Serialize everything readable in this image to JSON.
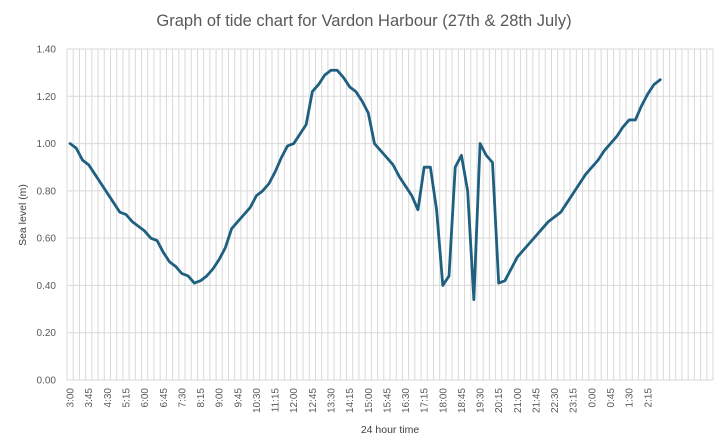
{
  "chart_data": {
    "type": "line",
    "title": "Graph of tide chart for Vardon Harbour (27th & 28th July)",
    "xlabel": "24 hour time",
    "ylabel": "Sea level (m)",
    "ylim": [
      0,
      1.4
    ],
    "y_ticks": [
      "0.00",
      "0.20",
      "0.40",
      "0.60",
      "0.80",
      "1.00",
      "1.20",
      "1.40"
    ],
    "x_start": "3:00",
    "x_step_minutes": 15,
    "x_tick_labels": [
      "3:00",
      "3:45",
      "4:30",
      "5:15",
      "6:00",
      "6:45",
      "7:30",
      "8:15",
      "9:00",
      "9:45",
      "10:30",
      "11:15",
      "12:00",
      "12:45",
      "13:30",
      "14:15",
      "15:00",
      "15:45",
      "16:30",
      "17:15",
      "18:00",
      "18:45",
      "19:30",
      "20:15",
      "21:00",
      "21:45",
      "22:30",
      "23:15",
      "0:00",
      "0:45",
      "1:30",
      "2:15"
    ],
    "grid": true,
    "legend": "none",
    "series": [
      {
        "name": "Sea level",
        "color": "#1f5f80",
        "values": [
          1.0,
          0.98,
          0.93,
          0.91,
          0.87,
          0.83,
          0.79,
          0.75,
          0.71,
          0.7,
          0.67,
          0.65,
          0.63,
          0.6,
          0.59,
          0.54,
          0.5,
          0.48,
          0.45,
          0.44,
          0.41,
          0.42,
          0.44,
          0.47,
          0.51,
          0.56,
          0.64,
          0.67,
          0.7,
          0.73,
          0.78,
          0.8,
          0.83,
          0.88,
          0.94,
          0.99,
          1.0,
          1.04,
          1.08,
          1.22,
          1.25,
          1.29,
          1.31,
          1.31,
          1.28,
          1.24,
          1.22,
          1.18,
          1.13,
          1.0,
          0.97,
          0.94,
          0.91,
          0.86,
          0.82,
          0.78,
          0.72,
          0.9,
          0.9,
          0.72,
          0.4,
          0.44,
          0.9,
          0.95,
          0.8,
          0.34,
          1.0,
          0.95,
          0.92,
          0.41,
          0.42,
          0.47,
          0.52,
          0.55,
          0.58,
          0.61,
          0.64,
          0.67,
          0.69,
          0.71,
          0.75,
          0.79,
          0.83,
          0.87,
          0.9,
          0.93,
          0.97,
          1.0,
          1.03,
          1.07,
          1.1,
          1.1,
          1.16,
          1.21,
          1.25,
          1.27
        ]
      }
    ]
  }
}
